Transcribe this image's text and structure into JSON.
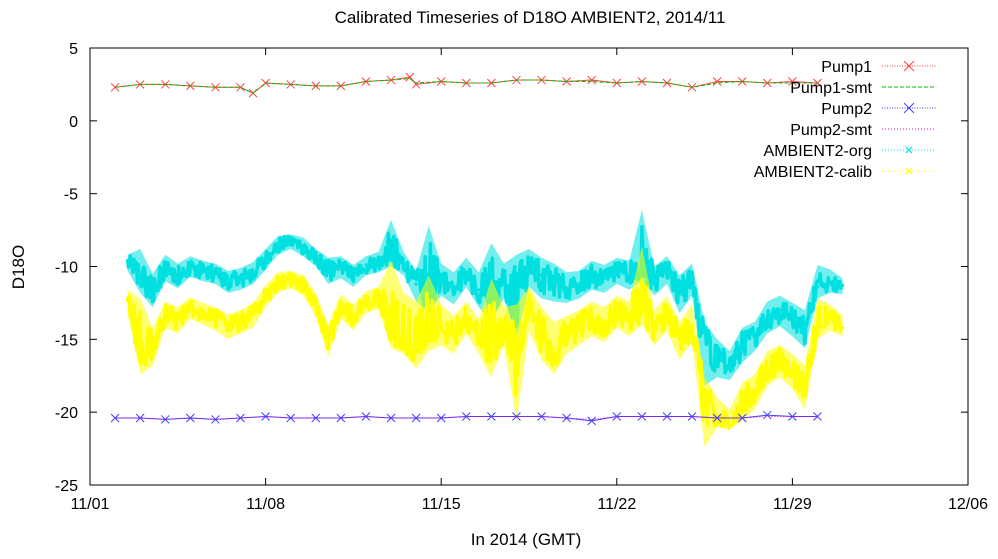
{
  "chart_data": {
    "type": "line",
    "title": "Calibrated Timeseries of D18O AMBIENT2, 2014/11",
    "xlabel": "In 2014 (GMT)",
    "ylabel": "D18O",
    "xlim": [
      "2014-11-01",
      "2014-12-06"
    ],
    "ylim": [
      -25,
      5
    ],
    "x_ticks": [
      "11/01",
      "11/08",
      "11/15",
      "11/22",
      "11/29",
      "12/06"
    ],
    "y_ticks": [
      "5",
      "0",
      "-5",
      "-10",
      "-15",
      "-20",
      "-25"
    ],
    "y_tick_values": [
      5,
      0,
      -5,
      -10,
      -15,
      -20,
      -25
    ],
    "legend_position": "top-right",
    "grid": false,
    "series": [
      {
        "name": "Pump1",
        "color": "#ff4040",
        "style": "line-points",
        "marker": "x",
        "x": [
          "2014-11-02",
          "2014-11-03",
          "2014-11-04",
          "2014-11-05",
          "2014-11-06",
          "2014-11-07",
          "2014-11-07T12",
          "2014-11-08",
          "2014-11-09",
          "2014-11-10",
          "2014-11-11",
          "2014-11-12",
          "2014-11-13",
          "2014-11-13T18",
          "2014-11-14",
          "2014-11-15",
          "2014-11-16",
          "2014-11-17",
          "2014-11-18",
          "2014-11-19",
          "2014-11-20",
          "2014-11-21",
          "2014-11-22",
          "2014-11-23",
          "2014-11-24",
          "2014-11-25",
          "2014-11-26",
          "2014-11-27",
          "2014-11-28",
          "2014-11-29",
          "2014-11-30"
        ],
        "y": [
          2.3,
          2.5,
          2.5,
          2.4,
          2.3,
          2.3,
          1.9,
          2.6,
          2.5,
          2.4,
          2.4,
          2.7,
          2.8,
          3.0,
          2.5,
          2.7,
          2.6,
          2.6,
          2.8,
          2.8,
          2.7,
          2.8,
          2.6,
          2.7,
          2.6,
          2.3,
          2.7,
          2.7,
          2.6,
          2.7,
          2.6
        ]
      },
      {
        "name": "Pump1-smt",
        "color": "#00c000",
        "style": "dashed",
        "x": [
          "2014-11-02",
          "2014-11-03",
          "2014-11-04",
          "2014-11-05",
          "2014-11-06",
          "2014-11-07",
          "2014-11-07T12",
          "2014-11-08",
          "2014-11-09",
          "2014-11-10",
          "2014-11-11",
          "2014-11-12",
          "2014-11-13",
          "2014-11-13T18",
          "2014-11-14",
          "2014-11-15",
          "2014-11-16",
          "2014-11-17",
          "2014-11-18",
          "2014-11-19",
          "2014-11-20",
          "2014-11-21",
          "2014-11-22",
          "2014-11-23",
          "2014-11-24",
          "2014-11-25",
          "2014-11-26",
          "2014-11-27",
          "2014-11-28",
          "2014-11-29",
          "2014-11-30"
        ],
        "y": [
          2.3,
          2.5,
          2.5,
          2.4,
          2.3,
          2.3,
          1.9,
          2.6,
          2.5,
          2.4,
          2.4,
          2.7,
          2.8,
          2.9,
          2.6,
          2.7,
          2.6,
          2.6,
          2.8,
          2.8,
          2.7,
          2.7,
          2.6,
          2.7,
          2.6,
          2.3,
          2.6,
          2.7,
          2.6,
          2.6,
          2.6
        ]
      },
      {
        "name": "Pump2",
        "color": "#4040ff",
        "style": "line-points",
        "marker": "x",
        "x": [
          "2014-11-02",
          "2014-11-03",
          "2014-11-04",
          "2014-11-05",
          "2014-11-06",
          "2014-11-07",
          "2014-11-08",
          "2014-11-09",
          "2014-11-10",
          "2014-11-11",
          "2014-11-12",
          "2014-11-13",
          "2014-11-14",
          "2014-11-15",
          "2014-11-16",
          "2014-11-17",
          "2014-11-18",
          "2014-11-19",
          "2014-11-20",
          "2014-11-21",
          "2014-11-22",
          "2014-11-23",
          "2014-11-24",
          "2014-11-25",
          "2014-11-26",
          "2014-11-27",
          "2014-11-28",
          "2014-11-29",
          "2014-11-30"
        ],
        "y": [
          -20.4,
          -20.4,
          -20.5,
          -20.4,
          -20.5,
          -20.4,
          -20.3,
          -20.4,
          -20.4,
          -20.4,
          -20.3,
          -20.4,
          -20.4,
          -20.4,
          -20.3,
          -20.3,
          -20.3,
          -20.3,
          -20.4,
          -20.6,
          -20.3,
          -20.3,
          -20.3,
          -20.3,
          -20.4,
          -20.4,
          -20.2,
          -20.3,
          -20.3
        ]
      },
      {
        "name": "Pump2-smt",
        "color": "#e000e0",
        "style": "dotted",
        "x": [
          "2014-11-02",
          "2014-11-03",
          "2014-11-04",
          "2014-11-05",
          "2014-11-06",
          "2014-11-07",
          "2014-11-08",
          "2014-11-09",
          "2014-11-10",
          "2014-11-11",
          "2014-11-12",
          "2014-11-13",
          "2014-11-14",
          "2014-11-15",
          "2014-11-16",
          "2014-11-17",
          "2014-11-18",
          "2014-11-19",
          "2014-11-20",
          "2014-11-21",
          "2014-11-22",
          "2014-11-23",
          "2014-11-24",
          "2014-11-25",
          "2014-11-26",
          "2014-11-27",
          "2014-11-28",
          "2014-11-29",
          "2014-11-30"
        ],
        "y": [
          -20.4,
          -20.4,
          -20.5,
          -20.4,
          -20.5,
          -20.4,
          -20.3,
          -20.4,
          -20.4,
          -20.4,
          -20.3,
          -20.4,
          -20.4,
          -20.4,
          -20.3,
          -20.3,
          -20.3,
          -20.3,
          -20.4,
          -20.5,
          -20.3,
          -20.3,
          -20.3,
          -20.3,
          -20.4,
          -20.4,
          -20.3,
          -20.3,
          -20.3
        ]
      },
      {
        "name": "AMBIENT2-org",
        "color": "#00e0e0",
        "style": "points-band",
        "x": [
          "2014-11-02T12",
          "2014-11-03",
          "2014-11-03T12",
          "2014-11-04",
          "2014-11-04T12",
          "2014-11-05",
          "2014-11-05T12",
          "2014-11-06",
          "2014-11-06T12",
          "2014-11-07",
          "2014-11-07T12",
          "2014-11-08",
          "2014-11-08T12",
          "2014-11-09",
          "2014-11-09T12",
          "2014-11-10",
          "2014-11-10T12",
          "2014-11-11",
          "2014-11-11T12",
          "2014-11-12",
          "2014-11-12T12",
          "2014-11-13",
          "2014-11-13T12",
          "2014-11-14",
          "2014-11-14T12",
          "2014-11-15",
          "2014-11-15T12",
          "2014-11-16",
          "2014-11-16T12",
          "2014-11-17",
          "2014-11-17T12",
          "2014-11-18",
          "2014-11-18T12",
          "2014-11-19",
          "2014-11-19T12",
          "2014-11-20",
          "2014-11-20T12",
          "2014-11-21",
          "2014-11-21T12",
          "2014-11-22",
          "2014-11-22T12",
          "2014-11-23",
          "2014-11-23T12",
          "2014-11-24",
          "2014-11-24T12",
          "2014-11-25",
          "2014-11-25T12",
          "2014-11-26",
          "2014-11-26T12",
          "2014-11-27",
          "2014-11-27T12",
          "2014-11-28",
          "2014-11-28T12",
          "2014-11-29",
          "2014-11-29T12",
          "2014-11-30",
          "2014-11-30T12",
          "2014-12-01"
        ],
        "y": [
          -9.6,
          -11.0,
          -11.6,
          -10.2,
          -10.6,
          -10.0,
          -10.3,
          -10.5,
          -11.0,
          -10.8,
          -10.4,
          -9.5,
          -8.5,
          -8.2,
          -8.6,
          -9.4,
          -10.4,
          -10.0,
          -10.6,
          -9.9,
          -9.7,
          -9.3,
          -9.8,
          -11.2,
          -11.8,
          -11.0,
          -11.4,
          -10.4,
          -11.6,
          -12.1,
          -11.0,
          -12.2,
          -9.8,
          -10.6,
          -10.9,
          -11.5,
          -11.2,
          -10.5,
          -10.8,
          -10.2,
          -10.6,
          -10.0,
          -10.9,
          -10.2,
          -11.8,
          -10.8,
          -14.5,
          -16.4,
          -16.8,
          -15.4,
          -14.7,
          -13.4,
          -13.0,
          -13.6,
          -14.4,
          -11.4,
          -11.1,
          -11.3
        ],
        "low": [
          -10.3,
          -11.8,
          -12.8,
          -11.0,
          -11.5,
          -10.7,
          -11.0,
          -11.2,
          -11.8,
          -11.6,
          -11.2,
          -10.2,
          -9.2,
          -8.8,
          -9.3,
          -10.0,
          -11.2,
          -10.8,
          -11.4,
          -10.6,
          -10.4,
          -10.0,
          -10.6,
          -12.4,
          -13.2,
          -12.0,
          -12.6,
          -11.4,
          -12.8,
          -13.8,
          -12.2,
          -15.0,
          -11.4,
          -12.2,
          -12.4,
          -12.5,
          -12.2,
          -11.6,
          -11.8,
          -11.2,
          -11.6,
          -11.0,
          -12.0,
          -11.2,
          -13.2,
          -12.0,
          -18.2,
          -17.6,
          -17.8,
          -16.6,
          -15.8,
          -14.6,
          -14.1,
          -14.8,
          -15.6,
          -12.2,
          -11.8,
          -11.9
        ],
        "high": [
          -9.2,
          -8.8,
          -10.5,
          -9.2,
          -9.8,
          -9.3,
          -9.6,
          -9.8,
          -10.3,
          -10.1,
          -9.7,
          -8.8,
          -7.9,
          -7.8,
          -8.0,
          -8.8,
          -9.4,
          -9.3,
          -9.9,
          -9.3,
          -9.0,
          -6.8,
          -9.0,
          -10.3,
          -7.2,
          -9.8,
          -10.4,
          -9.4,
          -10.4,
          -8.4,
          -9.8,
          -9.2,
          -8.8,
          -9.4,
          -9.8,
          -10.4,
          -10.3,
          -9.6,
          -9.9,
          -9.4,
          -9.6,
          -6.1,
          -10.0,
          -9.3,
          -10.6,
          -9.8,
          -13.8,
          -15.0,
          -15.8,
          -14.2,
          -13.8,
          -12.4,
          -12.0,
          -12.5,
          -13.0,
          -9.9,
          -10.2,
          -10.8
        ]
      },
      {
        "name": "AMBIENT2-calib",
        "color": "#ffff00",
        "style": "points-band",
        "x": [
          "2014-11-02T12",
          "2014-11-03",
          "2014-11-03T12",
          "2014-11-04",
          "2014-11-04T12",
          "2014-11-05",
          "2014-11-05T12",
          "2014-11-06",
          "2014-11-06T12",
          "2014-11-07",
          "2014-11-07T12",
          "2014-11-08",
          "2014-11-08T12",
          "2014-11-09",
          "2014-11-09T12",
          "2014-11-10",
          "2014-11-10T12",
          "2014-11-11",
          "2014-11-11T12",
          "2014-11-12",
          "2014-11-12T12",
          "2014-11-13",
          "2014-11-13T12",
          "2014-11-14",
          "2014-11-14T12",
          "2014-11-15",
          "2014-11-15T12",
          "2014-11-16",
          "2014-11-16T12",
          "2014-11-17",
          "2014-11-17T12",
          "2014-11-18",
          "2014-11-18T12",
          "2014-11-19",
          "2014-11-19T12",
          "2014-11-20",
          "2014-11-20T12",
          "2014-11-21",
          "2014-11-21T12",
          "2014-11-22",
          "2014-11-22T12",
          "2014-11-23",
          "2014-11-23T12",
          "2014-11-24",
          "2014-11-24T12",
          "2014-11-25",
          "2014-11-25T12",
          "2014-11-26",
          "2014-11-26T12",
          "2014-11-27",
          "2014-11-27T12",
          "2014-11-28",
          "2014-11-28T12",
          "2014-11-29",
          "2014-11-29T12",
          "2014-11-30",
          "2014-11-30T12",
          "2014-12-01"
        ],
        "y": [
          -12.3,
          -15.4,
          -15.6,
          -13.2,
          -13.6,
          -12.8,
          -13.2,
          -13.5,
          -14.0,
          -13.8,
          -13.2,
          -12.0,
          -11.0,
          -10.8,
          -11.2,
          -12.6,
          -15.4,
          -12.6,
          -13.4,
          -12.4,
          -12.1,
          -14.6,
          -15.0,
          -15.8,
          -14.6,
          -14.2,
          -14.8,
          -13.4,
          -14.8,
          -16.0,
          -14.2,
          -16.6,
          -12.8,
          -14.8,
          -15.6,
          -14.8,
          -14.2,
          -13.6,
          -14.0,
          -13.2,
          -13.6,
          -12.9,
          -14.2,
          -13.2,
          -15.0,
          -14.0,
          -18.8,
          -20.6,
          -21.0,
          -19.4,
          -18.6,
          -17.0,
          -16.4,
          -17.2,
          -18.4,
          -14.0,
          -13.6,
          -14.2
        ],
        "low": [
          -13.2,
          -17.4,
          -16.8,
          -14.2,
          -14.6,
          -13.6,
          -14.0,
          -14.4,
          -15.0,
          -14.6,
          -14.2,
          -12.8,
          -11.8,
          -11.5,
          -12.0,
          -13.4,
          -16.2,
          -13.6,
          -14.4,
          -13.2,
          -12.9,
          -15.6,
          -16.0,
          -17.0,
          -15.8,
          -15.4,
          -16.0,
          -14.6,
          -16.0,
          -17.6,
          -15.4,
          -20.6,
          -14.4,
          -16.4,
          -17.4,
          -16.0,
          -15.4,
          -14.8,
          -15.2,
          -14.2,
          -14.8,
          -14.0,
          -15.4,
          -14.4,
          -16.4,
          -15.2,
          -22.4,
          -21.0,
          -21.2,
          -20.6,
          -19.8,
          -18.2,
          -17.6,
          -18.4,
          -19.8,
          -15.0,
          -14.4,
          -14.8
        ],
        "high": [
          -11.6,
          -12.2,
          -14.2,
          -12.4,
          -12.8,
          -12.1,
          -12.5,
          -12.8,
          -13.3,
          -13.0,
          -12.5,
          -11.3,
          -10.4,
          -10.3,
          -10.6,
          -11.8,
          -14.0,
          -11.9,
          -12.6,
          -11.7,
          -11.4,
          -9.6,
          -11.8,
          -12.4,
          -10.6,
          -12.6,
          -13.4,
          -12.4,
          -13.6,
          -10.8,
          -12.8,
          -12.6,
          -11.4,
          -12.8,
          -13.8,
          -13.4,
          -13.0,
          -12.4,
          -12.8,
          -12.0,
          -12.4,
          -8.6,
          -13.0,
          -12.0,
          -13.8,
          -12.6,
          -17.6,
          -19.0,
          -19.8,
          -18.0,
          -17.4,
          -15.8,
          -15.4,
          -16.0,
          -16.8,
          -12.2,
          -12.6,
          -13.4
        ]
      }
    ]
  }
}
